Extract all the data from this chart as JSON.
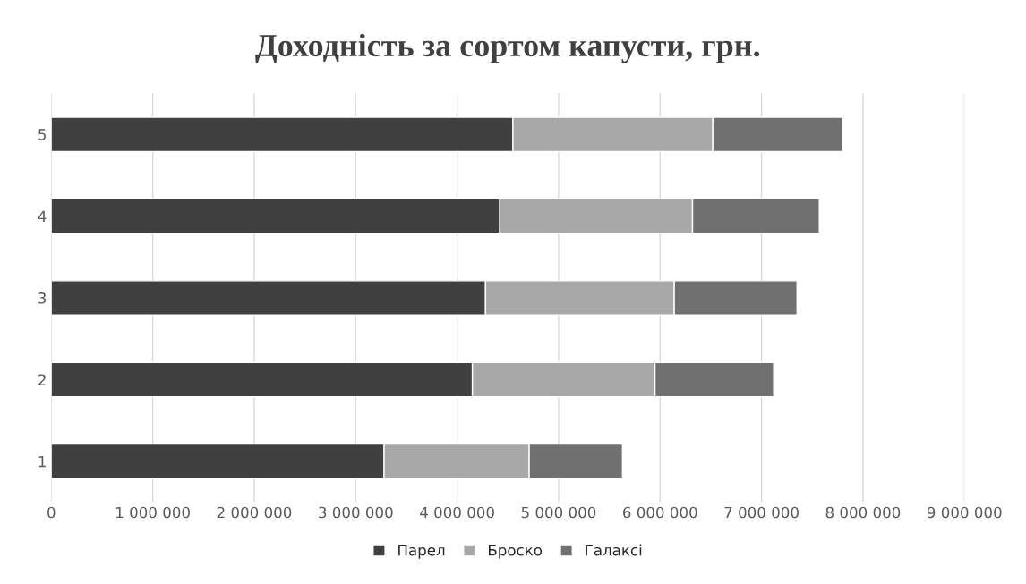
{
  "chart_data": {
    "type": "bar",
    "orientation": "horizontal",
    "stacked": true,
    "title": "Доходність за сортом капусти, грн.",
    "categories": [
      "5",
      "4",
      "3",
      "2",
      "1"
    ],
    "series": [
      {
        "name": "Парел",
        "color": "#404040",
        "values": [
          4550000,
          4420000,
          4280000,
          4150000,
          3280000
        ]
      },
      {
        "name": "Броско",
        "color": "#a8a8a8",
        "values": [
          1970000,
          1900000,
          1860000,
          1800000,
          1430000
        ]
      },
      {
        "name": "Галаксі",
        "color": "#707070",
        "values": [
          1280000,
          1250000,
          1210000,
          1170000,
          920000
        ]
      }
    ],
    "xlim": [
      0,
      9000000
    ],
    "xticks": [
      0,
      {
        "value": 1000000,
        "label": "1 000 000"
      },
      {
        "value": 2000000,
        "label": "2 000 000"
      },
      {
        "value": 3000000,
        "label": "3 000 000"
      },
      {
        "value": 4000000,
        "label": "4 000 000"
      },
      {
        "value": 5000000,
        "label": "5 000 000"
      },
      {
        "value": 6000000,
        "label": "6 000 000"
      },
      {
        "value": 7000000,
        "label": "7 000 000"
      },
      {
        "value": 8000000,
        "label": "8 000 000"
      },
      {
        "value": 9000000,
        "label": "9 000 000"
      }
    ],
    "grid": "x",
    "legend": "bottom"
  }
}
